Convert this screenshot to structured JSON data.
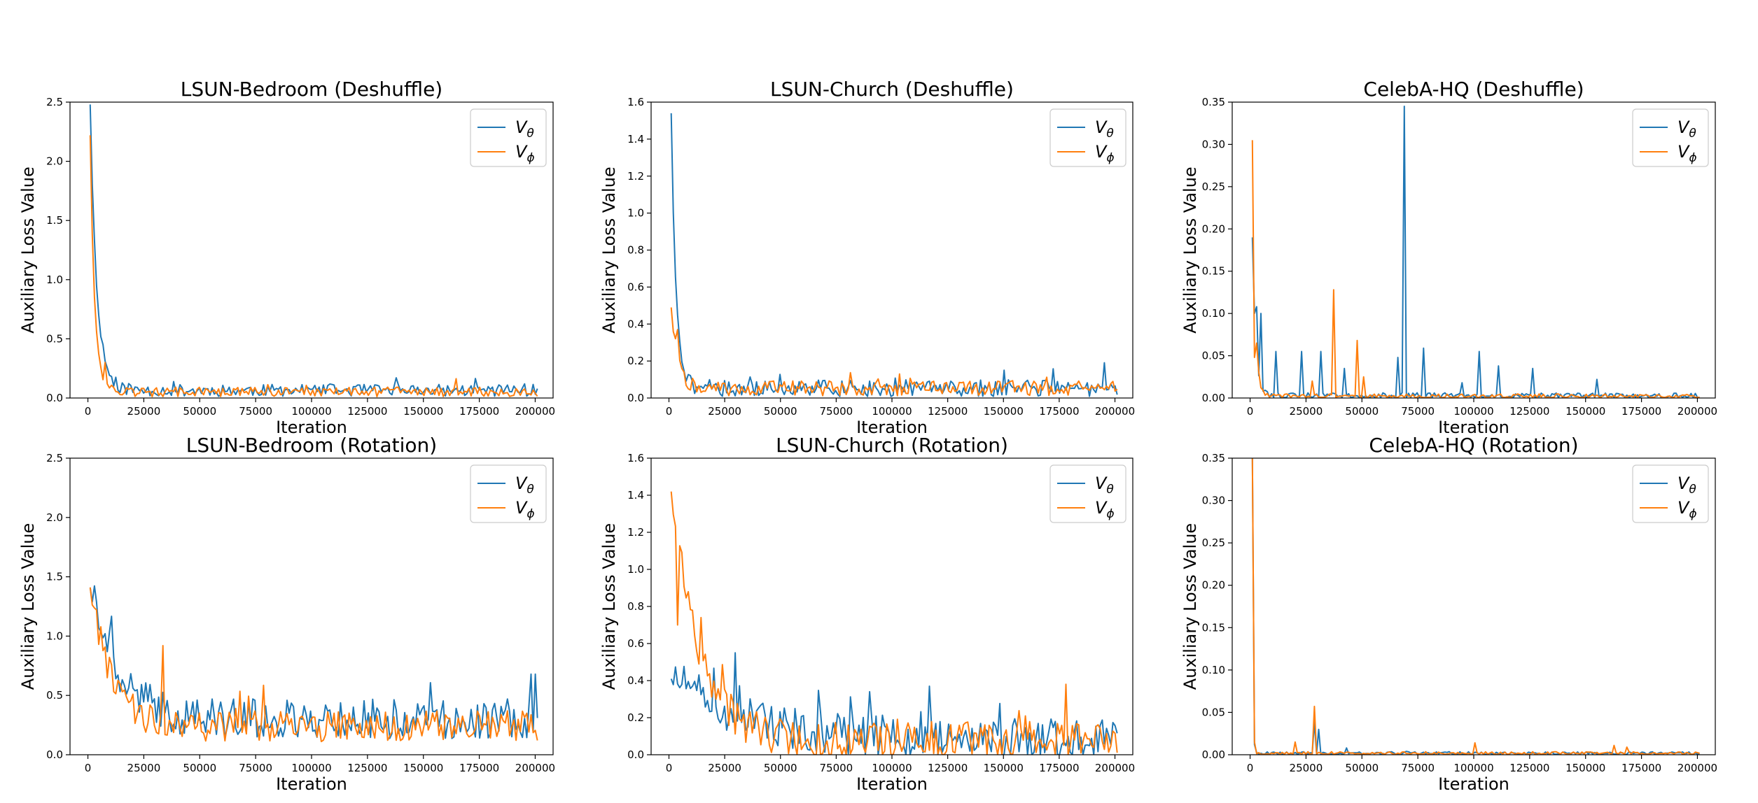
{
  "figure": {
    "description_free": true
  },
  "legend": {
    "theta": "V",
    "theta_sub": "θ",
    "phi": "V",
    "phi_sub": "ϕ",
    "theta_color": "#1f77b4",
    "phi_color": "#ff7f0e",
    "placement": "top-right"
  },
  "chart_data": [
    {
      "type": "line",
      "title": "LSUN-Bedroom (Deshuffle)",
      "xlabel": "Iteration",
      "ylabel": "Auxiliary Loss Value",
      "xlim": [
        -8000,
        208000
      ],
      "ylim": [
        0,
        2.5
      ],
      "xticks": [
        0,
        25000,
        50000,
        75000,
        100000,
        125000,
        150000,
        175000,
        200000
      ],
      "yticks": [
        0.0,
        0.5,
        1.0,
        1.5,
        2.0,
        2.5
      ],
      "ytick_labels": [
        "0.0",
        "0.5",
        "1.0",
        "1.5",
        "2.0",
        "2.5"
      ],
      "series": [
        {
          "name": "V_theta",
          "pattern": "decay",
          "start": 2.48,
          "plateau": 0.05,
          "tau": 3000,
          "noise": 0.05,
          "spike_prob": 0.04,
          "spike_amp": 0.1,
          "seed": 11
        },
        {
          "name": "V_phi",
          "pattern": "decay",
          "start": 2.22,
          "plateau": 0.04,
          "tau": 2000,
          "noise": 0.04,
          "spike_prob": 0.03,
          "spike_amp": 0.08,
          "seed": 12
        }
      ],
      "peaks": [
        {
          "series": 0,
          "x": 4000,
          "y": 0.95
        },
        {
          "series": 1,
          "x": 8000,
          "y": 0.3
        }
      ]
    },
    {
      "type": "line",
      "title": "LSUN-Church (Deshuffle)",
      "xlabel": "Iteration",
      "ylabel": "Auxiliary Loss Value",
      "xlim": [
        -8000,
        208000
      ],
      "ylim": [
        0,
        1.6
      ],
      "xticks": [
        0,
        25000,
        50000,
        75000,
        100000,
        125000,
        150000,
        175000,
        200000
      ],
      "yticks": [
        0.0,
        0.2,
        0.4,
        0.6,
        0.8,
        1.0,
        1.2,
        1.4,
        1.6
      ],
      "ytick_labels": [
        "0.0",
        "0.2",
        "0.4",
        "0.6",
        "0.8",
        "1.0",
        "1.2",
        "1.4",
        "1.6"
      ],
      "series": [
        {
          "name": "V_theta",
          "pattern": "decay",
          "start": 1.54,
          "plateau": 0.04,
          "tau": 2200,
          "noise": 0.045,
          "spike_prob": 0.04,
          "spike_amp": 0.1,
          "seed": 21
        },
        {
          "name": "V_phi",
          "pattern": "decay",
          "start": 0.49,
          "plateau": 0.04,
          "tau": 3000,
          "noise": 0.04,
          "spike_prob": 0.04,
          "spike_amp": 0.09,
          "seed": 22
        }
      ],
      "peaks": [
        {
          "series": 1,
          "x": 4000,
          "y": 0.37
        },
        {
          "series": 0,
          "x": 150000,
          "y": 0.15
        },
        {
          "series": 1,
          "x": 103000,
          "y": 0.13
        }
      ]
    },
    {
      "type": "line",
      "title": "CelebA-HQ (Deshuffle)",
      "xlabel": "Iteration",
      "ylabel": "Auxiliary Loss Value",
      "xlim": [
        -8000,
        208000
      ],
      "ylim": [
        0,
        0.35
      ],
      "xticks": [
        0,
        25000,
        50000,
        75000,
        100000,
        125000,
        150000,
        175000,
        200000
      ],
      "yticks": [
        0.0,
        0.05,
        0.1,
        0.15,
        0.2,
        0.25,
        0.3,
        0.35
      ],
      "ytick_labels": [
        "0.00",
        "0.05",
        "0.10",
        "0.15",
        "0.20",
        "0.25",
        "0.30",
        "0.35"
      ],
      "series": [
        {
          "name": "V_theta",
          "pattern": "flat",
          "start": 0.19,
          "plateau": 0.001,
          "tau": 1500,
          "noise": 0.004,
          "spike_prob": 0.0,
          "spike_amp": 0.0,
          "seed": 31
        },
        {
          "name": "V_phi",
          "pattern": "flat",
          "start": 0.305,
          "plateau": 0.001,
          "tau": 1200,
          "noise": 0.003,
          "spike_prob": 0.0,
          "spike_amp": 0.0,
          "seed": 32
        }
      ],
      "peaks": [
        {
          "series": 0,
          "x": 3000,
          "y": 0.108
        },
        {
          "series": 0,
          "x": 5000,
          "y": 0.1
        },
        {
          "series": 0,
          "x": 12000,
          "y": 0.055
        },
        {
          "series": 0,
          "x": 23000,
          "y": 0.055
        },
        {
          "series": 0,
          "x": 32000,
          "y": 0.055
        },
        {
          "series": 0,
          "x": 42000,
          "y": 0.035
        },
        {
          "series": 0,
          "x": 66000,
          "y": 0.048
        },
        {
          "series": 0,
          "x": 69000,
          "y": 0.345
        },
        {
          "series": 0,
          "x": 78000,
          "y": 0.059
        },
        {
          "series": 0,
          "x": 95000,
          "y": 0.018
        },
        {
          "series": 0,
          "x": 102000,
          "y": 0.055
        },
        {
          "series": 0,
          "x": 111000,
          "y": 0.038
        },
        {
          "series": 0,
          "x": 126000,
          "y": 0.035
        },
        {
          "series": 0,
          "x": 155000,
          "y": 0.022
        },
        {
          "series": 1,
          "x": 2000,
          "y": 0.048
        },
        {
          "series": 1,
          "x": 37000,
          "y": 0.128
        },
        {
          "series": 1,
          "x": 48000,
          "y": 0.068
        },
        {
          "series": 1,
          "x": 51000,
          "y": 0.025
        },
        {
          "series": 1,
          "x": 28000,
          "y": 0.02
        }
      ]
    },
    {
      "type": "line",
      "title": "LSUN-Bedroom (Rotation)",
      "xlabel": "Iteration",
      "ylabel": "Auxiliary Loss Value",
      "xlim": [
        -8000,
        208000
      ],
      "ylim": [
        0,
        2.5
      ],
      "xticks": [
        0,
        25000,
        50000,
        75000,
        100000,
        125000,
        150000,
        175000,
        200000
      ],
      "yticks": [
        0.0,
        0.5,
        1.0,
        1.5,
        2.0,
        2.5
      ],
      "ytick_labels": [
        "0.0",
        "0.5",
        "1.0",
        "1.5",
        "2.0",
        "2.5"
      ],
      "series": [
        {
          "name": "V_theta",
          "pattern": "decay",
          "start": 1.41,
          "plateau": 0.25,
          "tau": 12000,
          "noise": 0.17,
          "spike_prob": 0.08,
          "spike_amp": 0.35,
          "seed": 41
        },
        {
          "name": "V_phi",
          "pattern": "decay",
          "start": 1.41,
          "plateau": 0.2,
          "tau": 9000,
          "noise": 0.13,
          "spike_prob": 0.06,
          "spike_amp": 0.3,
          "seed": 42
        }
      ],
      "peaks": [
        {
          "series": 1,
          "x": 34000,
          "y": 0.92
        },
        {
          "series": 0,
          "x": 198000,
          "y": 0.68
        },
        {
          "series": 0,
          "x": 200000,
          "y": 0.68
        },
        {
          "series": 0,
          "x": 5000,
          "y": 1.07
        }
      ]
    },
    {
      "type": "line",
      "title": "LSUN-Church (Rotation)",
      "xlabel": "Iteration",
      "ylabel": "Auxiliary Loss Value",
      "xlim": [
        -8000,
        208000
      ],
      "ylim": [
        0,
        1.6
      ],
      "xticks": [
        0,
        25000,
        50000,
        75000,
        100000,
        125000,
        150000,
        175000,
        200000
      ],
      "yticks": [
        0.0,
        0.2,
        0.4,
        0.6,
        0.8,
        1.0,
        1.2,
        1.4,
        1.6
      ],
      "ytick_labels": [
        "0.0",
        "0.2",
        "0.4",
        "0.6",
        "0.8",
        "1.0",
        "1.2",
        "1.4",
        "1.6"
      ],
      "series": [
        {
          "name": "V_theta",
          "pattern": "decay",
          "start": 0.41,
          "plateau": 0.05,
          "tau": 30000,
          "noise": 0.11,
          "spike_prob": 0.08,
          "spike_amp": 0.22,
          "seed": 51
        },
        {
          "name": "V_phi",
          "pattern": "decay",
          "start": 1.42,
          "plateau": 0.05,
          "tau": 12000,
          "noise": 0.1,
          "spike_prob": 0.06,
          "spike_amp": 0.2,
          "seed": 52
        }
      ],
      "peaks": [
        {
          "series": 1,
          "x": 4000,
          "y": 0.7
        },
        {
          "series": 1,
          "x": 14000,
          "y": 0.74
        },
        {
          "series": 0,
          "x": 30000,
          "y": 0.55
        },
        {
          "series": 0,
          "x": 117000,
          "y": 0.37
        },
        {
          "series": 1,
          "x": 178000,
          "y": 0.38
        }
      ]
    },
    {
      "type": "line",
      "title": "CelebA-HQ (Rotation)",
      "xlabel": "Iteration",
      "ylabel": "Auxiliary Loss Value",
      "xlim": [
        -8000,
        208000
      ],
      "ylim": [
        0,
        0.35
      ],
      "xticks": [
        0,
        25000,
        50000,
        75000,
        100000,
        125000,
        150000,
        175000,
        200000
      ],
      "yticks": [
        0.0,
        0.05,
        0.1,
        0.15,
        0.2,
        0.25,
        0.3,
        0.35
      ],
      "ytick_labels": [
        "0.00",
        "0.05",
        "0.10",
        "0.15",
        "0.20",
        "0.25",
        "0.30",
        "0.35"
      ],
      "series": [
        {
          "name": "V_theta",
          "pattern": "flat",
          "start": 0.35,
          "plateau": 0.001,
          "tau": 300,
          "noise": 0.002,
          "spike_prob": 0.0,
          "spike_amp": 0.0,
          "seed": 61
        },
        {
          "name": "V_phi",
          "pattern": "flat",
          "start": 0.35,
          "plateau": 0.001,
          "tau": 300,
          "noise": 0.002,
          "spike_prob": 0.0,
          "spike_amp": 0.0,
          "seed": 62
        }
      ],
      "peaks": [
        {
          "series": 0,
          "x": 2000,
          "y": 0.012
        },
        {
          "series": 0,
          "x": 29000,
          "y": 0.038
        },
        {
          "series": 0,
          "x": 31000,
          "y": 0.03
        },
        {
          "series": 0,
          "x": 43000,
          "y": 0.008
        },
        {
          "series": 0,
          "x": 70000,
          "y": 0.004
        },
        {
          "series": 1,
          "x": 20000,
          "y": 0.015
        },
        {
          "series": 1,
          "x": 29000,
          "y": 0.057
        },
        {
          "series": 1,
          "x": 101000,
          "y": 0.014
        },
        {
          "series": 1,
          "x": 163000,
          "y": 0.011
        },
        {
          "series": 1,
          "x": 168000,
          "y": 0.009
        }
      ]
    }
  ]
}
